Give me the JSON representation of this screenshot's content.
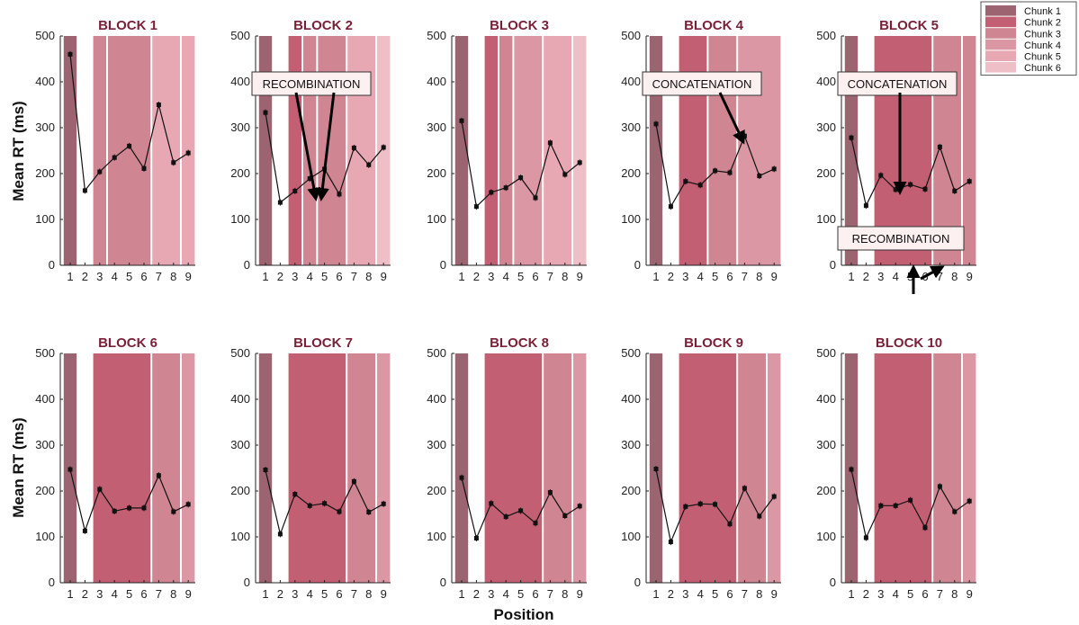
{
  "figure": {
    "ylabel": "Mean RT (ms)",
    "xlabel": "Position"
  },
  "legend": {
    "placement": "top-right",
    "entries": [
      "Chunk 1",
      "Chunk 2",
      "Chunk 3",
      "Chunk 4",
      "Chunk 5",
      "Chunk 6"
    ],
    "colors": [
      "#9c6470",
      "#c35f73",
      "#d08592",
      "#dc97a4",
      "#e7a8b4",
      "#efbfc8"
    ]
  },
  "chart_data": [
    {
      "type": "line",
      "title": "BLOCK 1",
      "x": [
        1,
        2,
        3,
        4,
        5,
        6,
        7,
        8,
        9
      ],
      "y": [
        460,
        163,
        204,
        235,
        260,
        211,
        350,
        224,
        245
      ],
      "ylim": [
        0,
        500
      ],
      "yticks": [
        0,
        100,
        200,
        300,
        400,
        500
      ],
      "xticks": [
        1,
        2,
        3,
        4,
        5,
        6,
        7,
        8,
        9
      ],
      "chunks": [
        [
          1,
          1,
          1
        ],
        [
          3,
          3,
          3
        ],
        [
          4,
          6,
          3
        ],
        [
          7,
          8,
          5
        ],
        [
          9,
          9,
          5
        ]
      ],
      "annotations": []
    },
    {
      "type": "line",
      "title": "BLOCK 2",
      "x": [
        1,
        2,
        3,
        4,
        5,
        6,
        7,
        8,
        9
      ],
      "y": [
        333,
        137,
        162,
        189,
        210,
        155,
        256,
        219,
        257
      ],
      "ylim": [
        0,
        500
      ],
      "yticks": [
        0,
        100,
        200,
        300,
        400,
        500
      ],
      "xticks": [
        1,
        2,
        3,
        4,
        5,
        6,
        7,
        8,
        9
      ],
      "chunks": [
        [
          1,
          1,
          1
        ],
        [
          3,
          3,
          2
        ],
        [
          4,
          4,
          3
        ],
        [
          5,
          6,
          3
        ],
        [
          7,
          8,
          5
        ],
        [
          9,
          9,
          6
        ]
      ],
      "annotations": [
        {
          "text": "RECOMBINATION",
          "box": [
            3.05,
            4.45,
            11.3,
            14.6
          ],
          "arrows": [
            [
              6.1,
              4.45,
              8.25,
              2.1
            ],
            [
              9.8,
              4.45,
              8.6,
              2.2
            ]
          ]
        }
      ]
    },
    {
      "type": "line",
      "title": "BLOCK 3",
      "x": [
        1,
        2,
        3,
        4,
        5,
        6,
        7,
        8,
        9
      ],
      "y": [
        315,
        128,
        159,
        169,
        191,
        147,
        267,
        198,
        224
      ],
      "ylim": [
        0,
        500
      ],
      "yticks": [
        0,
        100,
        200,
        300,
        400,
        500
      ],
      "xticks": [
        1,
        2,
        3,
        4,
        5,
        6,
        7,
        8,
        9
      ],
      "chunks": [
        [
          1,
          1,
          1
        ],
        [
          3,
          3,
          2
        ],
        [
          4,
          4,
          3
        ],
        [
          5,
          6,
          4
        ],
        [
          7,
          8,
          5
        ],
        [
          9,
          9,
          6
        ]
      ],
      "annotations": []
    },
    {
      "type": "line",
      "title": "BLOCK 4",
      "x": [
        1,
        2,
        3,
        4,
        5,
        6,
        7,
        8,
        9
      ],
      "y": [
        308,
        128,
        183,
        175,
        206,
        202,
        282,
        195,
        210
      ],
      "ylim": [
        0,
        500
      ],
      "yticks": [
        0,
        100,
        200,
        300,
        400,
        500
      ],
      "xticks": [
        1,
        2,
        3,
        4,
        5,
        6,
        7,
        8,
        9
      ],
      "chunks": [
        [
          1,
          1,
          1
        ],
        [
          3,
          4,
          2
        ],
        [
          5,
          6,
          3
        ],
        [
          7,
          9,
          4
        ]
      ],
      "annotations": [
        {
          "text": "CONCATENATION",
          "box": [
            3.05,
            4.45,
            11.0,
            14.2
          ],
          "arrows": [
            [
              6.7,
              4.45,
              7.8,
              3.5
            ]
          ]
        }
      ]
    },
    {
      "type": "line",
      "title": "BLOCK 5",
      "x": [
        1,
        2,
        3,
        4,
        5,
        6,
        7,
        8,
        9
      ],
      "y": [
        278,
        130,
        196,
        165,
        176,
        166,
        258,
        162,
        183
      ],
      "ylim": [
        0,
        500
      ],
      "yticks": [
        0,
        100,
        200,
        300,
        400,
        500
      ],
      "xticks": [
        1,
        2,
        3,
        4,
        5,
        6,
        7,
        8,
        9
      ],
      "chunks": [
        [
          1,
          1,
          1
        ],
        [
          3,
          6,
          2
        ],
        [
          7,
          8,
          3
        ],
        [
          9,
          9,
          3
        ]
      ],
      "annotations": [
        {
          "text": "CONCATENATION",
          "box": [
            3.05,
            4.45,
            10.95,
            14.6
          ],
          "arrows": [
            [
              8.2,
              4.45,
              8.2,
              2.4
            ]
          ]
        },
        {
          "text": "RECOMBINATION",
          "box": [
            0.35,
            1.85,
            11.05,
            14.6
          ],
          "arrows": [
            [
              10.9,
              0.35,
              12.7,
              1.45
            ],
            [
              10.45,
              0.35,
              10.45,
              1.45
            ]
          ]
        }
      ]
    },
    {
      "type": "line",
      "title": "BLOCK 6",
      "x": [
        1,
        2,
        3,
        4,
        5,
        6,
        7,
        8,
        9
      ],
      "y": [
        247,
        113,
        204,
        156,
        163,
        163,
        234,
        155,
        171
      ],
      "ylim": [
        0,
        500
      ],
      "yticks": [
        0,
        100,
        200,
        300,
        400,
        500
      ],
      "xticks": [
        1,
        2,
        3,
        4,
        5,
        6,
        7,
        8,
        9
      ],
      "chunks": [
        [
          1,
          1,
          1
        ],
        [
          3,
          6,
          2
        ],
        [
          7,
          8,
          3
        ],
        [
          9,
          9,
          4
        ]
      ],
      "annotations": []
    },
    {
      "type": "line",
      "title": "BLOCK 7",
      "x": [
        1,
        2,
        3,
        4,
        5,
        6,
        7,
        8,
        9
      ],
      "y": [
        246,
        106,
        193,
        168,
        173,
        155,
        221,
        154,
        172
      ],
      "ylim": [
        0,
        500
      ],
      "yticks": [
        0,
        100,
        200,
        300,
        400,
        500
      ],
      "xticks": [
        1,
        2,
        3,
        4,
        5,
        6,
        7,
        8,
        9
      ],
      "chunks": [
        [
          1,
          1,
          1
        ],
        [
          3,
          6,
          2
        ],
        [
          7,
          8,
          3
        ],
        [
          9,
          9,
          4
        ]
      ],
      "annotations": []
    },
    {
      "type": "line",
      "title": "BLOCK 8",
      "x": [
        1,
        2,
        3,
        4,
        5,
        6,
        7,
        8,
        9
      ],
      "y": [
        229,
        97,
        173,
        144,
        157,
        130,
        197,
        146,
        167
      ],
      "ylim": [
        0,
        500
      ],
      "yticks": [
        0,
        100,
        200,
        300,
        400,
        500
      ],
      "xticks": [
        1,
        2,
        3,
        4,
        5,
        6,
        7,
        8,
        9
      ],
      "chunks": [
        [
          1,
          1,
          1
        ],
        [
          3,
          6,
          2
        ],
        [
          7,
          8,
          3
        ],
        [
          9,
          9,
          4
        ]
      ],
      "annotations": []
    },
    {
      "type": "line",
      "title": "BLOCK 9",
      "x": [
        1,
        2,
        3,
        4,
        5,
        6,
        7,
        8,
        9
      ],
      "y": [
        248,
        89,
        166,
        172,
        171,
        128,
        206,
        145,
        188
      ],
      "ylim": [
        0,
        500
      ],
      "yticks": [
        0,
        100,
        200,
        300,
        400,
        500
      ],
      "xticks": [
        1,
        2,
        3,
        4,
        5,
        6,
        7,
        8,
        9
      ],
      "chunks": [
        [
          1,
          1,
          1
        ],
        [
          3,
          6,
          2
        ],
        [
          7,
          8,
          3
        ],
        [
          9,
          9,
          4
        ]
      ],
      "annotations": []
    },
    {
      "type": "line",
      "title": "BLOCK 10",
      "x": [
        1,
        2,
        3,
        4,
        5,
        6,
        7,
        8,
        9
      ],
      "y": [
        247,
        98,
        168,
        168,
        180,
        120,
        210,
        155,
        178
      ],
      "ylim": [
        0,
        500
      ],
      "yticks": [
        0,
        100,
        200,
        300,
        400,
        500
      ],
      "xticks": [
        1,
        2,
        3,
        4,
        5,
        6,
        7,
        8,
        9
      ],
      "chunks": [
        [
          1,
          1,
          1
        ],
        [
          3,
          6,
          2
        ],
        [
          7,
          8,
          3
        ],
        [
          9,
          9,
          4
        ]
      ],
      "annotations": []
    }
  ]
}
